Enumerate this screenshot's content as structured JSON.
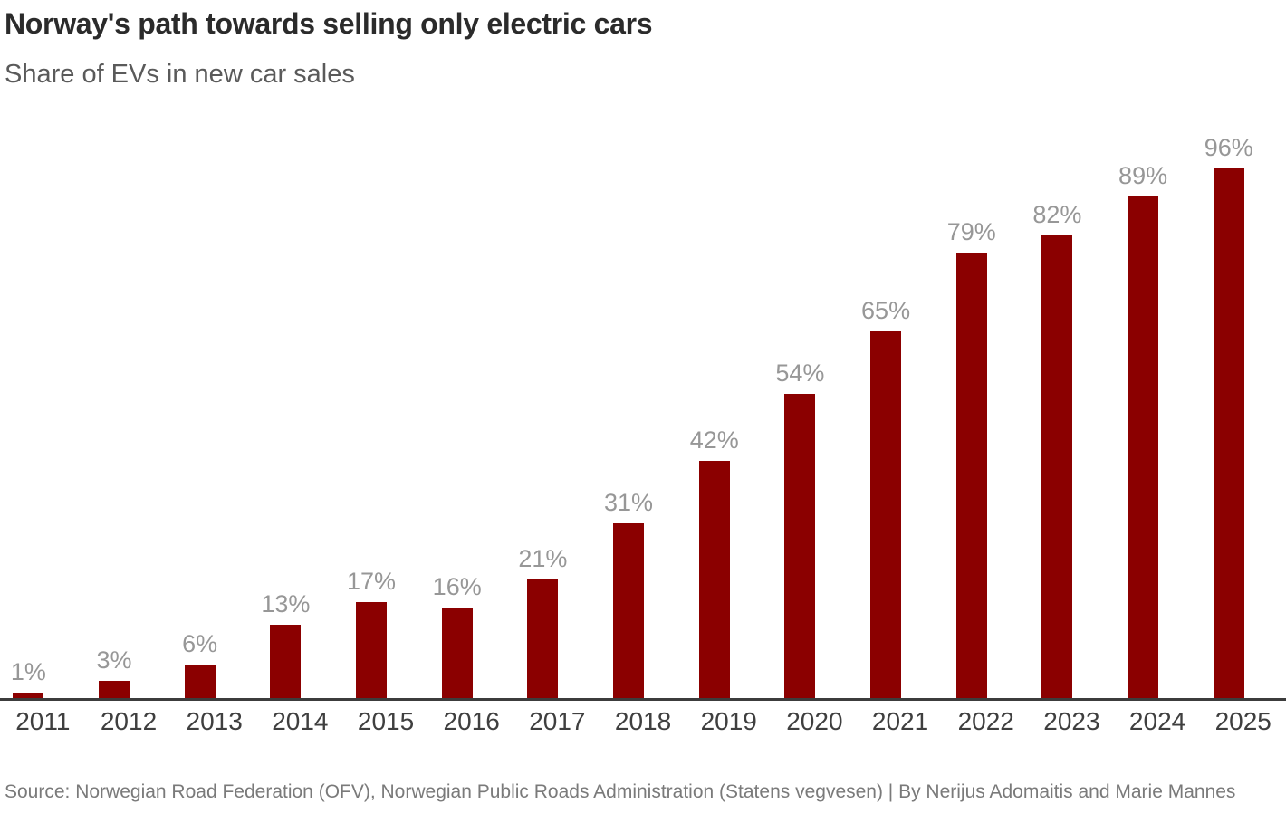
{
  "header": {
    "title": "Norway's path towards selling only electric cars",
    "subtitle": "Share of EVs in new car sales"
  },
  "source_note": "Source: Norwegian Road Federation (OFV), Norwegian Public Roads Administration (Statens vegvesen)  | By Nerijus Adomaitis and Marie Mannes",
  "colors": {
    "bar": "#8b0000",
    "axis_line": "#3c3c3c",
    "value_label": "#979797",
    "tick_label": "#3f3f3f",
    "title": "#2b2b2b",
    "subtitle": "#5a5a5a",
    "source": "#7a7a7a"
  },
  "chart_data": {
    "type": "bar",
    "title": "Norway's path towards selling only electric cars",
    "subtitle": "Share of EVs in new car sales",
    "categories": [
      "2011",
      "2012",
      "2013",
      "2014",
      "2015",
      "2016",
      "2017",
      "2018",
      "2019",
      "2020",
      "2021",
      "2022",
      "2023",
      "2024",
      "2025"
    ],
    "values": [
      1,
      3,
      6,
      13,
      17,
      16,
      21,
      31,
      42,
      54,
      65,
      79,
      82,
      89,
      96
    ],
    "value_labels": [
      "1%",
      "3%",
      "6%",
      "13%",
      "17%",
      "16%",
      "21%",
      "31%",
      "42%",
      "54%",
      "65%",
      "79%",
      "82%",
      "89%",
      "96%"
    ],
    "xlabel": "",
    "ylabel": "",
    "ylim": [
      0,
      100
    ],
    "unit": "%",
    "grid": false,
    "legend": false,
    "bar_color": "#8b0000",
    "data_labels": "above bars",
    "x_axis_line": true,
    "y_axis": "hidden"
  }
}
